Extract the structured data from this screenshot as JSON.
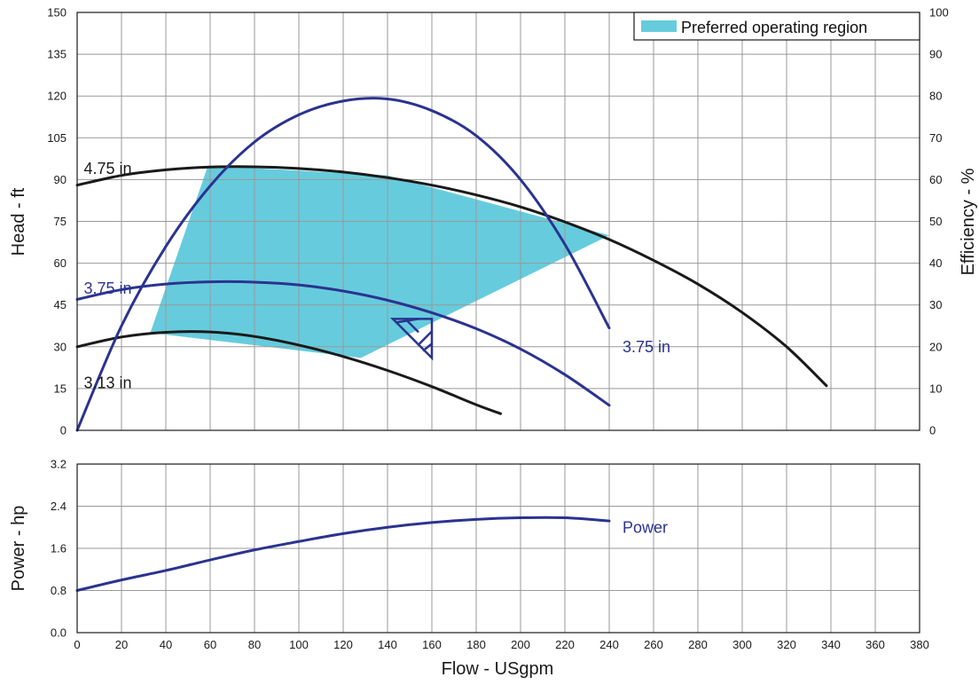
{
  "chart_data": [
    {
      "type": "line",
      "panel": "head-efficiency",
      "xlabel": "",
      "ylabel": "Head - ft",
      "y2label": "Efficiency - %",
      "xlim": [
        0,
        380
      ],
      "ylim": [
        0,
        150
      ],
      "y2lim": [
        0,
        100
      ],
      "xticks": [
        0,
        20,
        40,
        60,
        80,
        100,
        120,
        140,
        160,
        180,
        200,
        220,
        240,
        260,
        280,
        300,
        320,
        340,
        360,
        380
      ],
      "yticks": [
        0,
        15,
        30,
        45,
        60,
        75,
        90,
        105,
        120,
        135,
        150
      ],
      "y2ticks": [
        0,
        10,
        20,
        30,
        40,
        50,
        60,
        70,
        80,
        90,
        100
      ],
      "grid": true,
      "legend": {
        "position": "top-right",
        "entries": [
          {
            "label": "Preferred operating region",
            "color": "#66ccdd"
          }
        ]
      },
      "series": [
        {
          "label": "4.75 in",
          "axis": "head",
          "color": "#1a1a1a",
          "x": [
            0,
            20,
            40,
            60,
            80,
            100,
            120,
            140,
            160,
            180,
            200,
            220,
            240,
            260,
            280,
            300,
            320,
            338
          ],
          "y": [
            88,
            91.5,
            93.5,
            94.5,
            94.6,
            94,
            92.7,
            90.7,
            88,
            84.5,
            80.2,
            74.8,
            68.5,
            61,
            52.5,
            42.3,
            30,
            16
          ]
        },
        {
          "label": "3.75 in",
          "axis": "head",
          "color": "#2b3390",
          "x": [
            0,
            20,
            40,
            60,
            80,
            100,
            120,
            140,
            160,
            180,
            200,
            220,
            240
          ],
          "y": [
            47,
            50.5,
            52.5,
            53.3,
            53.2,
            52.2,
            50,
            46.7,
            42.2,
            36.5,
            29.2,
            20,
            9
          ]
        },
        {
          "label": "3.13 in",
          "axis": "head",
          "color": "#1a1a1a",
          "x": [
            0,
            20,
            40,
            60,
            80,
            100,
            120,
            140,
            160,
            180,
            191
          ],
          "y": [
            30,
            33.5,
            35.2,
            35.3,
            33.7,
            30.6,
            26.5,
            21.5,
            15.7,
            9.2,
            6
          ]
        },
        {
          "label": "3.75 in",
          "axis": "efficiency",
          "color": "#2b3390",
          "x": [
            0,
            20,
            40,
            60,
            80,
            100,
            120,
            140,
            160,
            180,
            200,
            220,
            240
          ],
          "y": [
            0,
            25,
            44,
            58.5,
            69,
            75.5,
            78.8,
            79.3,
            76.5,
            70.5,
            60,
            44.5,
            24.5
          ]
        }
      ],
      "region": {
        "label": "Preferred operating region",
        "x": [
          33,
          59,
          140,
          240,
          128
        ],
        "y": [
          35,
          95,
          91.5,
          70,
          26
        ]
      },
      "bep_marker": {
        "x": 160,
        "y": 40
      },
      "annotations": [
        {
          "text": "4.75 in",
          "x": 3,
          "y": 94,
          "color": "#1a1a1a"
        },
        {
          "text": "3.75 in",
          "x": 3,
          "y": 51,
          "color": "#2b3390"
        },
        {
          "text": "3.13 in",
          "x": 3,
          "y": 17,
          "color": "#1a1a1a"
        },
        {
          "text": "3.75 in",
          "x": 246,
          "y": 30,
          "color": "#2b3390"
        }
      ]
    },
    {
      "type": "line",
      "panel": "power",
      "xlabel": "Flow - USgpm",
      "ylabel": "Power - hp",
      "xlim": [
        0,
        380
      ],
      "ylim": [
        0,
        3.2
      ],
      "xticks": [
        0,
        20,
        40,
        60,
        80,
        100,
        120,
        140,
        160,
        180,
        200,
        220,
        240,
        260,
        280,
        300,
        320,
        340,
        360,
        380
      ],
      "yticks": [
        0.0,
        0.8,
        1.6,
        2.4,
        3.2
      ],
      "ytick_labels": [
        "0.0",
        "0.8",
        "1.6",
        "2.4",
        "3.2"
      ],
      "grid": true,
      "series": [
        {
          "label": "Power",
          "color": "#2b3390",
          "x": [
            0,
            20,
            40,
            60,
            80,
            100,
            120,
            140,
            160,
            180,
            200,
            220,
            240
          ],
          "y": [
            0.8,
            1.0,
            1.18,
            1.38,
            1.57,
            1.73,
            1.88,
            2.0,
            2.09,
            2.15,
            2.18,
            2.18,
            2.12
          ]
        }
      ],
      "annotations": [
        {
          "text": "Power",
          "x": 246,
          "y": 2.0,
          "color": "#2b3390"
        }
      ]
    }
  ]
}
